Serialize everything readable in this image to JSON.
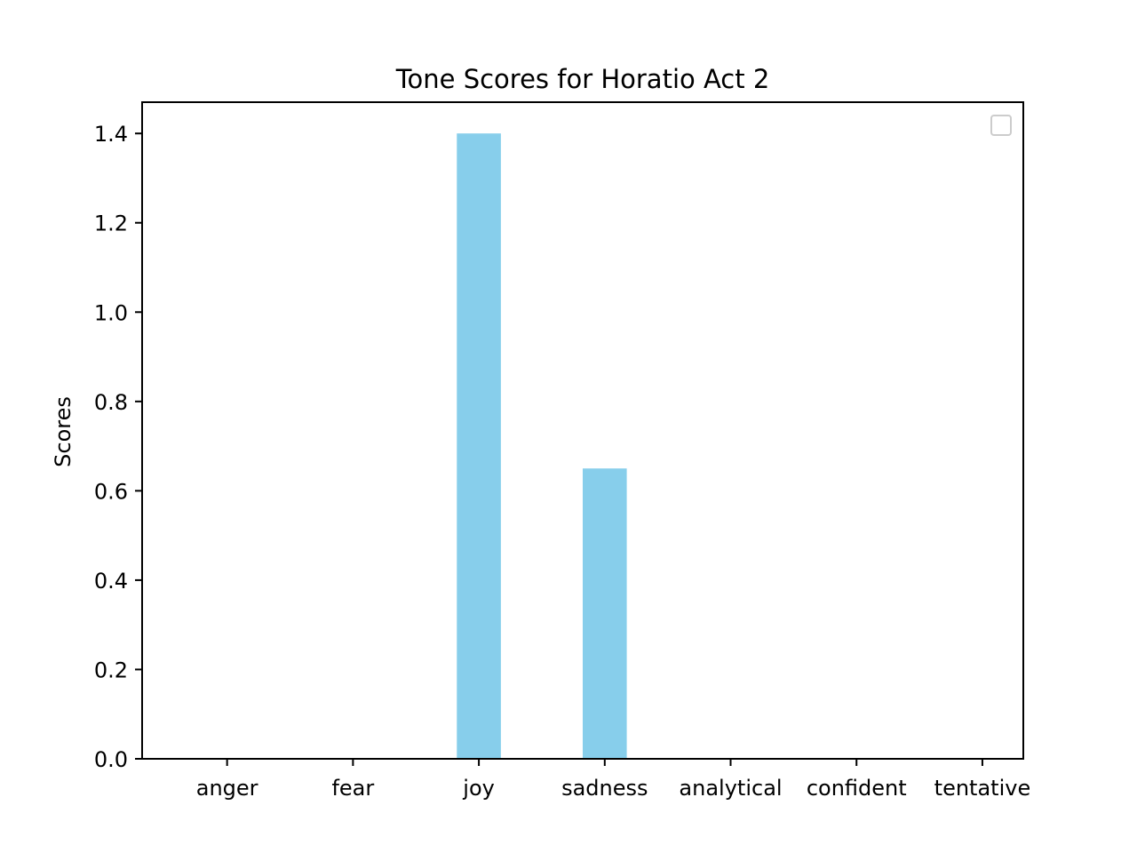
{
  "chart_data": {
    "type": "bar",
    "title": "Tone Scores for Horatio Act 2",
    "xlabel": "",
    "ylabel": "Scores",
    "categories": [
      "anger",
      "fear",
      "joy",
      "sadness",
      "analytical",
      "confident",
      "tentative"
    ],
    "values": [
      0,
      0,
      1.4,
      0.65,
      0,
      0,
      0
    ],
    "ylim": [
      0,
      1.47
    ],
    "yticks": [
      "0.0",
      "0.2",
      "0.4",
      "0.6",
      "0.8",
      "1.0",
      "1.2",
      "1.4"
    ],
    "bar_color": "#87ceeb",
    "grid": false,
    "legend": {
      "placement": "top-right",
      "entries": []
    }
  }
}
